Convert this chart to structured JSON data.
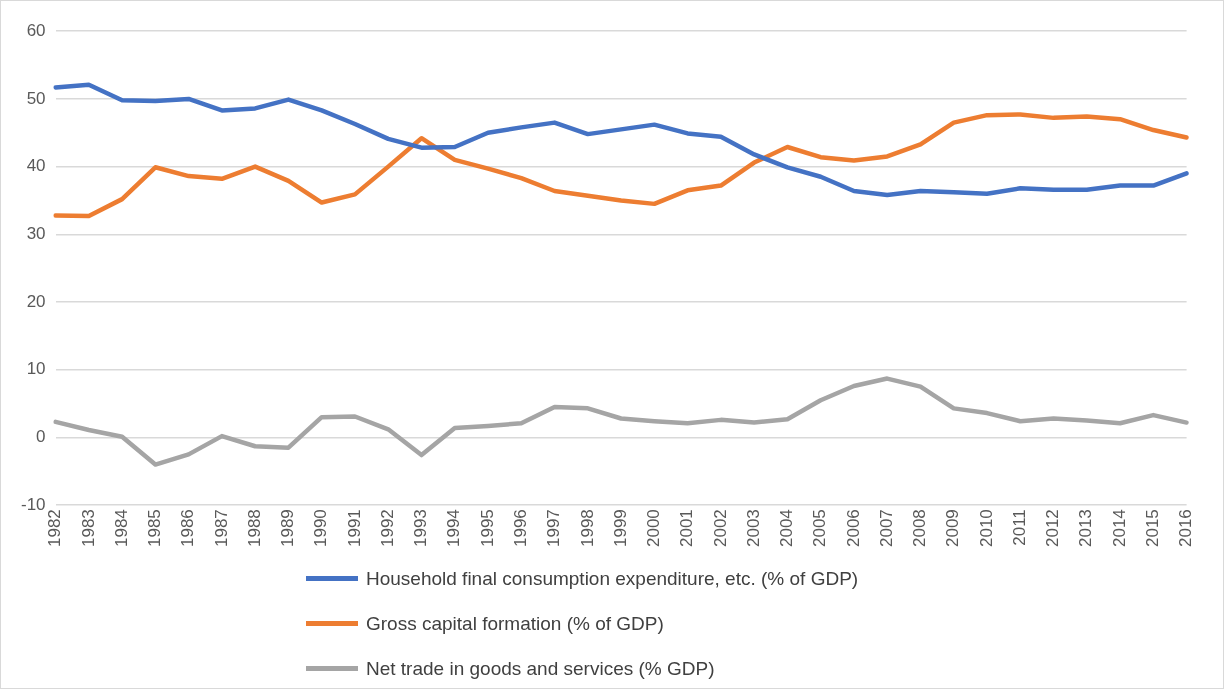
{
  "chart_data": {
    "type": "line",
    "categories": [
      "1982",
      "1983",
      "1984",
      "1985",
      "1986",
      "1987",
      "1988",
      "1989",
      "1990",
      "1991",
      "1992",
      "1993",
      "1994",
      "1995",
      "1996",
      "1997",
      "1998",
      "1999",
      "2000",
      "2001",
      "2002",
      "2003",
      "2004",
      "2005",
      "2006",
      "2007",
      "2008",
      "2009",
      "2010",
      "2011",
      "2012",
      "2013",
      "2014",
      "2015",
      "2016"
    ],
    "series": [
      {
        "name": "Household final consumption expenditure, etc. (% of GDP)",
        "color": "#4472c4",
        "values": [
          51.7,
          52.1,
          49.8,
          49.7,
          50.0,
          48.3,
          48.6,
          49.9,
          48.3,
          46.3,
          44.1,
          42.8,
          42.9,
          45.0,
          45.8,
          46.5,
          44.8,
          45.5,
          46.2,
          44.9,
          44.4,
          41.8,
          39.9,
          38.5,
          36.4,
          35.8,
          36.4,
          36.2,
          36.0,
          36.8,
          36.6,
          36.6,
          37.2,
          37.2,
          39.0
        ]
      },
      {
        "name": "Gross capital formation (% of GDP)",
        "color": "#ed7d31",
        "values": [
          32.8,
          32.7,
          35.2,
          39.9,
          38.6,
          38.2,
          40.0,
          37.9,
          34.7,
          35.9,
          40.0,
          44.2,
          41.0,
          39.7,
          38.3,
          36.4,
          35.7,
          35.0,
          34.5,
          36.5,
          37.2,
          40.6,
          42.9,
          41.4,
          40.9,
          41.5,
          43.3,
          46.5,
          47.6,
          47.7,
          47.2,
          47.4,
          47.0,
          45.4,
          44.3
        ]
      },
      {
        "name": "Net trade in goods and services (% GDP)",
        "color": "#a5a5a5",
        "values": [
          2.3,
          1.1,
          0.1,
          -4.0,
          -2.5,
          0.2,
          -1.3,
          -1.5,
          3.0,
          3.1,
          1.2,
          -2.6,
          1.4,
          1.7,
          2.1,
          4.5,
          4.3,
          2.8,
          2.4,
          2.1,
          2.6,
          2.2,
          2.7,
          5.5,
          7.6,
          8.7,
          7.5,
          4.3,
          3.6,
          2.4,
          2.8,
          2.5,
          2.1,
          3.3,
          2.2
        ]
      }
    ],
    "ylim": [
      -10,
      60
    ],
    "yticks": [
      -10,
      0,
      10,
      20,
      30,
      40,
      50,
      60
    ],
    "grid": "y",
    "legend": "bottom",
    "marker": "none",
    "line_style": "solid"
  }
}
